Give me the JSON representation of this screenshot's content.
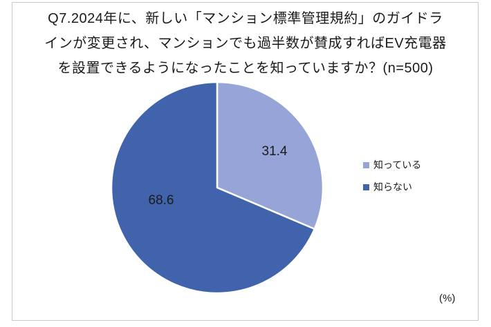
{
  "title": {
    "lines": [
      "Q7.2024年に、新しい「マンション標準管理規約」のガイドラ",
      "インが変更され、マンションでも過半数が賛成すればEV充電器",
      "を設置できるようになったことを知っていますか？(n=500)"
    ]
  },
  "legend": {
    "items": [
      {
        "label": "知っている",
        "color": "#97a4d7"
      },
      {
        "label": "知らない",
        "color": "#4063ab"
      }
    ]
  },
  "unit_label": "(%)",
  "frame_border_color": "#c9c9c9",
  "chart_data": {
    "type": "pie",
    "title": "Q7.2024年に、新しい「マンション標準管理規約」のガイドラインが変更され、マンションでも過半数が賛成すればEV充電器を設置できるようになったことを知っていますか？(n=500)",
    "categories": [
      "知っている",
      "知らない"
    ],
    "values": [
      31.4,
      68.6
    ],
    "colors": [
      "#97a4d7",
      "#4063ab"
    ],
    "unit": "%",
    "n_label": "n=500",
    "legend_position": "right",
    "start_angle_deg": 0,
    "direction": "clockwise",
    "slice_border_color": "#ffffff"
  }
}
